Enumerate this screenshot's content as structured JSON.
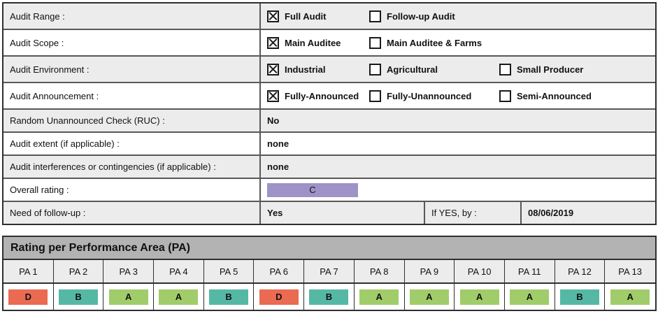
{
  "colors": {
    "rating_a": "#a1cc6a",
    "rating_b": "#55b8a5",
    "rating_c": "#9f92c7",
    "rating_d": "#ea6a52",
    "section_header_bg": "#b3b3b3",
    "row_alt_bg": "#ececec"
  },
  "form": {
    "rows": [
      {
        "label": "Audit Range :",
        "options": [
          {
            "label": "Full Audit",
            "checked": true
          },
          {
            "label": "Follow-up Audit",
            "checked": false
          }
        ]
      },
      {
        "label": "Audit Scope :",
        "options": [
          {
            "label": "Main Auditee",
            "checked": true
          },
          {
            "label": "Main Auditee & Farms",
            "checked": false
          }
        ]
      },
      {
        "label": "Audit Environment :",
        "options": [
          {
            "label": "Industrial",
            "checked": true
          },
          {
            "label": "Agricultural",
            "checked": false
          },
          {
            "label": "Small Producer",
            "checked": false
          }
        ]
      },
      {
        "label": "Audit Announcement :",
        "options": [
          {
            "label": "Fully-Announced",
            "checked": true
          },
          {
            "label": "Fully-Unannounced",
            "checked": false
          },
          {
            "label": "Semi-Announced",
            "checked": false
          }
        ]
      },
      {
        "label": "Random Unannounced Check (RUC) :",
        "value": "No"
      },
      {
        "label": "Audit extent (if applicable) :",
        "value": "none"
      },
      {
        "label": "Audit interferences or contingencies (if applicable) :",
        "value": "none"
      },
      {
        "label": "Overall rating :",
        "value": "C"
      },
      {
        "label": "Need of follow-up :",
        "value": "Yes",
        "if_yes_label": "If YES, by :",
        "if_yes_date": "08/06/2019"
      }
    ]
  },
  "pa_section": {
    "title": "Rating per Performance Area (PA)",
    "columns": [
      "PA 1",
      "PA 2",
      "PA 3",
      "PA 4",
      "PA 5",
      "PA 6",
      "PA 7",
      "PA 8",
      "PA 9",
      "PA 10",
      "PA 11",
      "PA 12",
      "PA 13"
    ],
    "ratings": [
      {
        "grade": "D"
      },
      {
        "grade": "B"
      },
      {
        "grade": "A"
      },
      {
        "grade": "A"
      },
      {
        "grade": "B"
      },
      {
        "grade": "D"
      },
      {
        "grade": "B"
      },
      {
        "grade": "A"
      },
      {
        "grade": "A"
      },
      {
        "grade": "A"
      },
      {
        "grade": "A"
      },
      {
        "grade": "B"
      },
      {
        "grade": "A"
      }
    ]
  }
}
